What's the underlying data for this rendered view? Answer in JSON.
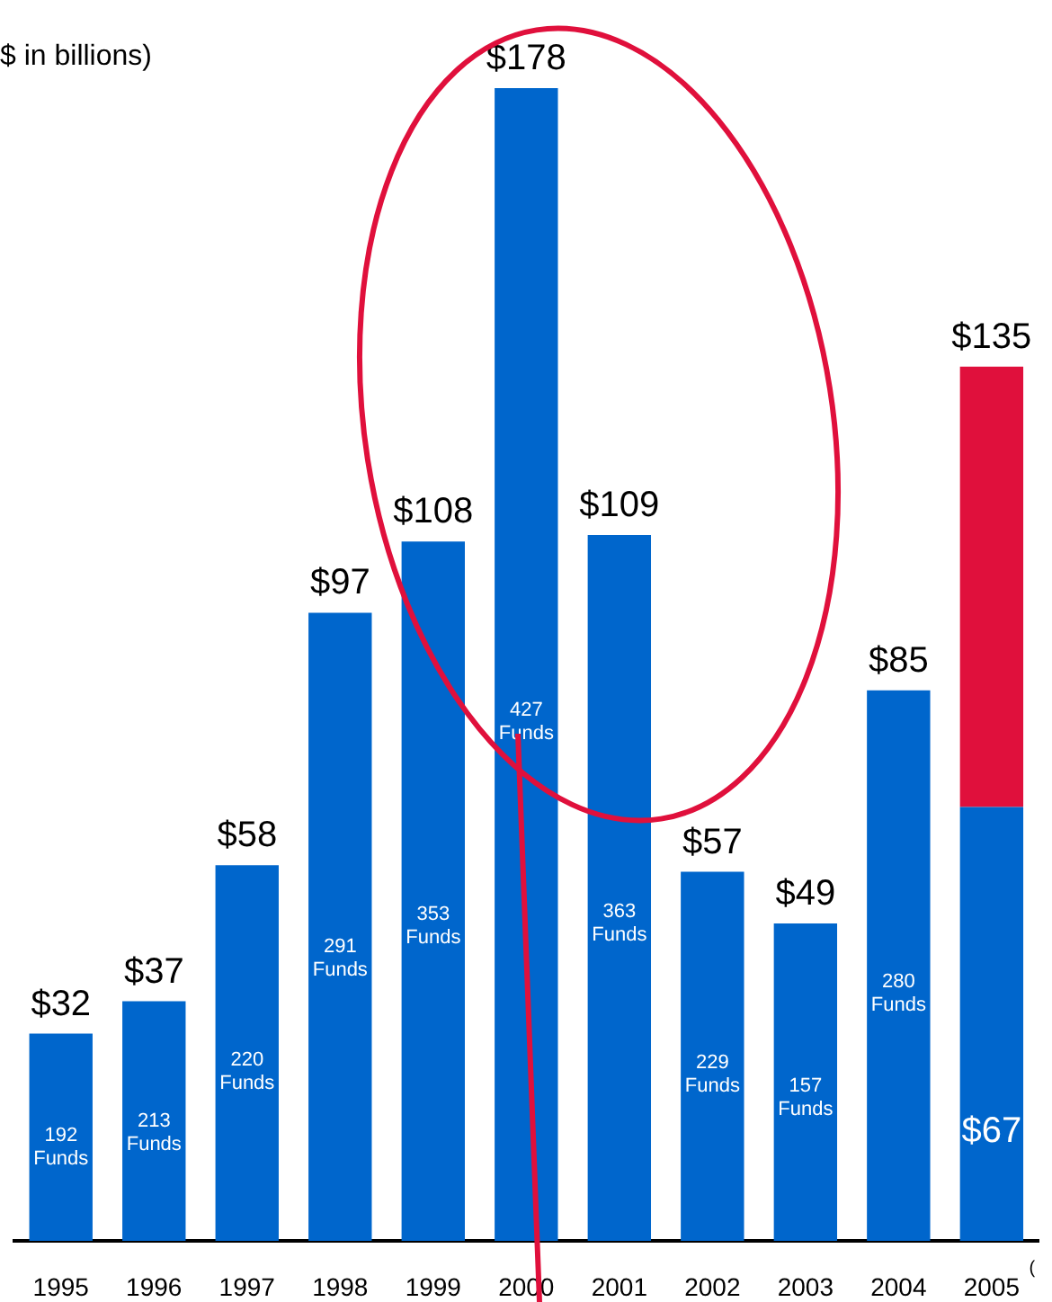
{
  "chart_data": {
    "type": "bar",
    "title": "$ in billions)",
    "categories": [
      "1995",
      "1996",
      "1997",
      "1998",
      "1999",
      "2000",
      "2001",
      "2002",
      "2003",
      "2004",
      "2005"
    ],
    "stacked": true,
    "ylim": [
      0,
      178
    ],
    "grid": false,
    "legend": false,
    "tick_labels": "x",
    "series": [
      {
        "color": "#0066cc",
        "values": [
          32,
          37,
          58,
          97,
          108,
          178,
          109,
          57,
          49,
          85,
          67
        ],
        "value_labels": [
          "$32",
          "$37",
          "$58",
          "$97",
          "$108",
          "$178",
          "$109",
          "$57",
          "$49",
          "$85",
          "$67"
        ]
      },
      {
        "color": "#e0103c",
        "values": [
          null,
          null,
          null,
          null,
          null,
          null,
          null,
          null,
          null,
          null,
          68
        ]
      }
    ],
    "totals": [
      null,
      null,
      null,
      null,
      null,
      null,
      null,
      null,
      null,
      null,
      "$135"
    ],
    "annotations": [
      "192 Funds",
      "213 Funds",
      "220 Funds",
      "291 Funds",
      "353 Funds",
      "427 Funds",
      "363 Funds",
      "229 Funds",
      "157 Funds",
      "280 Funds",
      "("
    ]
  }
}
